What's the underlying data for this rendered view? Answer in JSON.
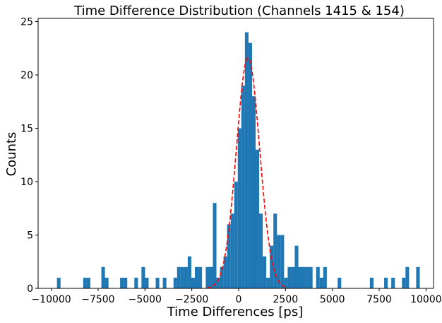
{
  "chart_data": {
    "type": "bar",
    "title": "Time Difference Distribution (Channels 1415 & 154)",
    "xlabel": "Time Differences [ps]",
    "ylabel": "Counts",
    "xlim": [
      -10700,
      10400
    ],
    "ylim": [
      0,
      25.3
    ],
    "xticks": [
      -10000,
      -7500,
      -5000,
      -2500,
      0,
      2500,
      5000,
      7500,
      10000
    ],
    "xtick_labels": [
      "−10000",
      "−7500",
      "−5000",
      "−2500",
      "0",
      "2500",
      "5000",
      "7500",
      "10000"
    ],
    "yticks": [
      0,
      5,
      10,
      15,
      20,
      25
    ],
    "ytick_labels": [
      "0",
      "5",
      "10",
      "15",
      "20",
      "25"
    ],
    "grid": false,
    "bin_width": 191,
    "histogram": {
      "color": "#1f77b4",
      "bins": [
        {
          "x": -9600,
          "count": 1
        },
        {
          "x": -8200,
          "count": 1
        },
        {
          "x": -8010,
          "count": 1
        },
        {
          "x": -7230,
          "count": 2
        },
        {
          "x": -7040,
          "count": 1
        },
        {
          "x": -6230,
          "count": 1
        },
        {
          "x": -6040,
          "count": 1
        },
        {
          "x": -5470,
          "count": 1
        },
        {
          "x": -5090,
          "count": 2
        },
        {
          "x": -4900,
          "count": 1
        },
        {
          "x": -4330,
          "count": 1
        },
        {
          "x": -3950,
          "count": 1
        },
        {
          "x": -3380,
          "count": 1
        },
        {
          "x": -3190,
          "count": 2
        },
        {
          "x": -3000,
          "count": 2
        },
        {
          "x": -2810,
          "count": 2
        },
        {
          "x": -2620,
          "count": 3
        },
        {
          "x": -2430,
          "count": 1
        },
        {
          "x": -2240,
          "count": 2
        },
        {
          "x": -2050,
          "count": 2
        },
        {
          "x": -1660,
          "count": 2
        },
        {
          "x": -1470,
          "count": 2
        },
        {
          "x": -1280,
          "count": 8
        },
        {
          "x": -1090,
          "count": 1
        },
        {
          "x": -900,
          "count": 2
        },
        {
          "x": -710,
          "count": 3
        },
        {
          "x": -520,
          "count": 6
        },
        {
          "x": -330,
          "count": 7
        },
        {
          "x": -140,
          "count": 10
        },
        {
          "x": 50,
          "count": 15
        },
        {
          "x": 240,
          "count": 19
        },
        {
          "x": 430,
          "count": 24
        },
        {
          "x": 620,
          "count": 23
        },
        {
          "x": 810,
          "count": 18
        },
        {
          "x": 1000,
          "count": 13
        },
        {
          "x": 1190,
          "count": 7
        },
        {
          "x": 1380,
          "count": 3
        },
        {
          "x": 1570,
          "count": 1
        },
        {
          "x": 1760,
          "count": 4
        },
        {
          "x": 1950,
          "count": 7
        },
        {
          "x": 2140,
          "count": 5
        },
        {
          "x": 2330,
          "count": 5
        },
        {
          "x": 2520,
          "count": 1
        },
        {
          "x": 2710,
          "count": 2
        },
        {
          "x": 2900,
          "count": 2
        },
        {
          "x": 3090,
          "count": 4
        },
        {
          "x": 3280,
          "count": 2
        },
        {
          "x": 3470,
          "count": 2
        },
        {
          "x": 3660,
          "count": 2
        },
        {
          "x": 3850,
          "count": 2
        },
        {
          "x": 4230,
          "count": 2
        },
        {
          "x": 4420,
          "count": 1
        },
        {
          "x": 4610,
          "count": 2
        },
        {
          "x": 5380,
          "count": 1
        },
        {
          "x": 7100,
          "count": 1
        },
        {
          "x": 7860,
          "count": 1
        },
        {
          "x": 8240,
          "count": 1
        },
        {
          "x": 8810,
          "count": 1
        },
        {
          "x": 9000,
          "count": 2
        },
        {
          "x": 9570,
          "count": 2
        }
      ]
    },
    "fit": {
      "type": "gaussian",
      "style": "dashed",
      "color": "#ff0000",
      "amplitude": 21.6,
      "mean": 500,
      "sigma": 620,
      "x_range": [
        -1700,
        2600
      ]
    }
  }
}
